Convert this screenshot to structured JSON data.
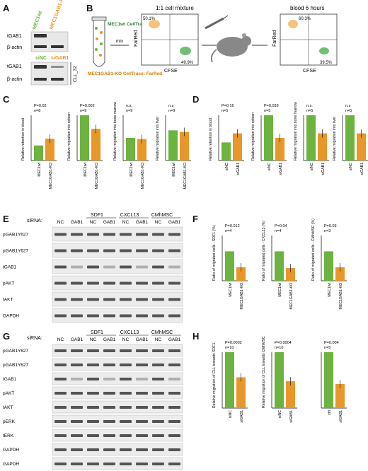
{
  "panel_letters": [
    "A",
    "B",
    "C",
    "D",
    "E",
    "F",
    "G",
    "H"
  ],
  "colors": {
    "green": "#6db33f",
    "orange": "#e8972a",
    "tube_orange": "#f5b35a",
    "cells_green": "#4caf50"
  },
  "panel_a": {
    "lane_labels_top": [
      "MEC1wt",
      "MEC1GAB1-KO"
    ],
    "lane_labels_bottom": [
      "siNC",
      "siGAB1"
    ],
    "row_labels_top": [
      "tGAB1",
      "β-actin"
    ],
    "row_labels_bottom": [
      "tGAB1",
      "β-actin"
    ],
    "side_label": "CLL_32"
  },
  "panel_b": {
    "tube_label_green": "MEC1wt CellTrace: CFSE",
    "tube_label_orange": "MEC1GAB1-KO CellTrace: FarRed",
    "mix_label": "mix",
    "plot1_title": "1:1 cell mixture",
    "plot1_q_ul": "50.1%",
    "plot1_q_lr": "49.9%",
    "plot2_title": "blood 6 hours",
    "plot2_q_ul": "60.3%",
    "plot2_q_lr": "39.5%",
    "xlabel": "CFSE",
    "ylabel": "FarRed"
  },
  "chart_data": [
    {
      "panel": "C",
      "type": "bar",
      "categories": [
        "MEC1wt",
        "MEC1GAB1-KO"
      ],
      "values": [
        1.0,
        1.45
      ],
      "ylabel": "Relative retention in blood",
      "p": "P=0.02",
      "n": "n=8",
      "ylim": [
        0,
        3.0
      ]
    },
    {
      "panel": "C",
      "type": "bar",
      "categories": [
        "MEC1wt",
        "MEC1GAB1-KO"
      ],
      "values": [
        1.0,
        0.7
      ],
      "ylabel": "Relative migration into spleen",
      "p": "P=0.002",
      "n": "n=9",
      "ylim": [
        0,
        1.0
      ]
    },
    {
      "panel": "C",
      "type": "bar",
      "categories": [
        "MEC1wt",
        "MEC1GAB1-KO"
      ],
      "values": [
        1.0,
        0.95
      ],
      "ylabel": "Relative migration into bone marrow",
      "p": "n.s.",
      "n": "n=9",
      "ylim": [
        0,
        2.0
      ]
    },
    {
      "panel": "C",
      "type": "bar",
      "categories": [
        "MEC1wt",
        "MEC1GAB1-KO"
      ],
      "values": [
        1.0,
        0.95
      ],
      "ylabel": "Relative migration into liver",
      "p": "n.s",
      "n": "n=9",
      "ylim": [
        0,
        1.5
      ]
    },
    {
      "panel": "D",
      "type": "bar",
      "categories": [
        "siNC",
        "siGAB1"
      ],
      "values": [
        1.0,
        1.5
      ],
      "ylabel": "Relative retention in blood",
      "p": "P=0.16",
      "n": "n=5",
      "ylim": [
        0,
        2.5
      ]
    },
    {
      "panel": "D",
      "type": "bar",
      "categories": [
        "siNC",
        "siGAB1"
      ],
      "values": [
        1.0,
        0.5
      ],
      "ylabel": "Relative migration into spleen",
      "p": "P=0.039",
      "n": "n=5",
      "ylim": [
        0,
        1.0
      ]
    },
    {
      "panel": "D",
      "type": "bar",
      "categories": [
        "siNC",
        "siGAB1"
      ],
      "values": [
        1.0,
        0.6
      ],
      "ylabel": "Relative migration into bone marrow",
      "p": "n.s.",
      "n": "n=5",
      "ylim": [
        0,
        1.0
      ]
    },
    {
      "panel": "D",
      "type": "bar",
      "categories": [
        "siNC",
        "siGAB1"
      ],
      "values": [
        1.0,
        0.6
      ],
      "ylabel": "Relative migration into liver",
      "p": "n.s",
      "n": "n=5",
      "ylim": [
        0,
        1.0
      ]
    },
    {
      "panel": "F",
      "type": "bar",
      "categories": [
        "MEC1wt",
        "MEC1GAB1-KO"
      ],
      "values": [
        65,
        30
      ],
      "ylabel": "Ratio of migrated cells - SDF1 (%)",
      "p": "P=0.012",
      "n": "n=4",
      "ylim": [
        0,
        100
      ]
    },
    {
      "panel": "F",
      "type": "bar",
      "categories": [
        "MEC1wt",
        "MEC1GAB1-KO"
      ],
      "values": [
        65,
        28
      ],
      "ylabel": "Ratio of migrated cells - CXCL13 (%)",
      "p": "P=0.04",
      "n": "n=4",
      "ylim": [
        0,
        100
      ]
    },
    {
      "panel": "F",
      "type": "bar",
      "categories": [
        "MEC1wt",
        "MEC1GAB1-KO"
      ],
      "values": [
        65,
        30
      ],
      "ylabel": "Ratio of migrated cells - CMhMSC (%)",
      "p": "P=0.03",
      "n": "n=3",
      "ylim": [
        0,
        100
      ]
    },
    {
      "panel": "H",
      "type": "bar",
      "categories": [
        "siNC",
        "siGAB1"
      ],
      "values": [
        1.0,
        0.55
      ],
      "ylabel": "Relative migration of CLL towards SDF1",
      "p": "P=0.0002",
      "n": "n=10",
      "ylim": [
        0,
        1.0
      ]
    },
    {
      "panel": "H",
      "type": "bar",
      "categories": [
        "siNC",
        "siGAB1"
      ],
      "values": [
        1.0,
        0.48
      ],
      "ylabel": "Relative migration of CLL towards CMhMSC",
      "p": "P=0.0004",
      "n": "n=10",
      "ylim": [
        0,
        1.0
      ]
    },
    {
      "panel": "H",
      "type": "bar",
      "categories": [
        "ctrl",
        "siGAB1"
      ],
      "values": [
        1.0,
        0.43
      ],
      "ylabel": "",
      "p": "P=0.004",
      "n": "n=5",
      "ylim": [
        0,
        1.0
      ]
    }
  ],
  "panel_e": {
    "sirna_label": "siRNA:",
    "lane_labels": [
      "NC",
      "GAB1",
      "NC",
      "GAB1",
      "NC",
      "GAB1",
      "NC",
      "GAB1"
    ],
    "treatments": [
      "SDF1",
      "CXCL13",
      "CMhMSC"
    ],
    "row_labels": [
      "pGAB1Y627",
      "pGAB1Y627",
      "tGAB1",
      "pAKT",
      "tAKT",
      "GAPDH"
    ]
  },
  "panel_g": {
    "sirna_label": "siRNA:",
    "lane_labels": [
      "NC",
      "GAB1",
      "NC",
      "GAB1",
      "NC",
      "GAB1",
      "NC",
      "GAB1"
    ],
    "treatments": [
      "SDF1",
      "CXCL13",
      "CMhMSC"
    ],
    "row_labels": [
      "pGAB1Y627",
      "pGAB1Y627",
      "tGAB1",
      "pAKT",
      "tAKT",
      "pERK",
      "tERK",
      "GAPDH",
      "GAPDH"
    ]
  }
}
